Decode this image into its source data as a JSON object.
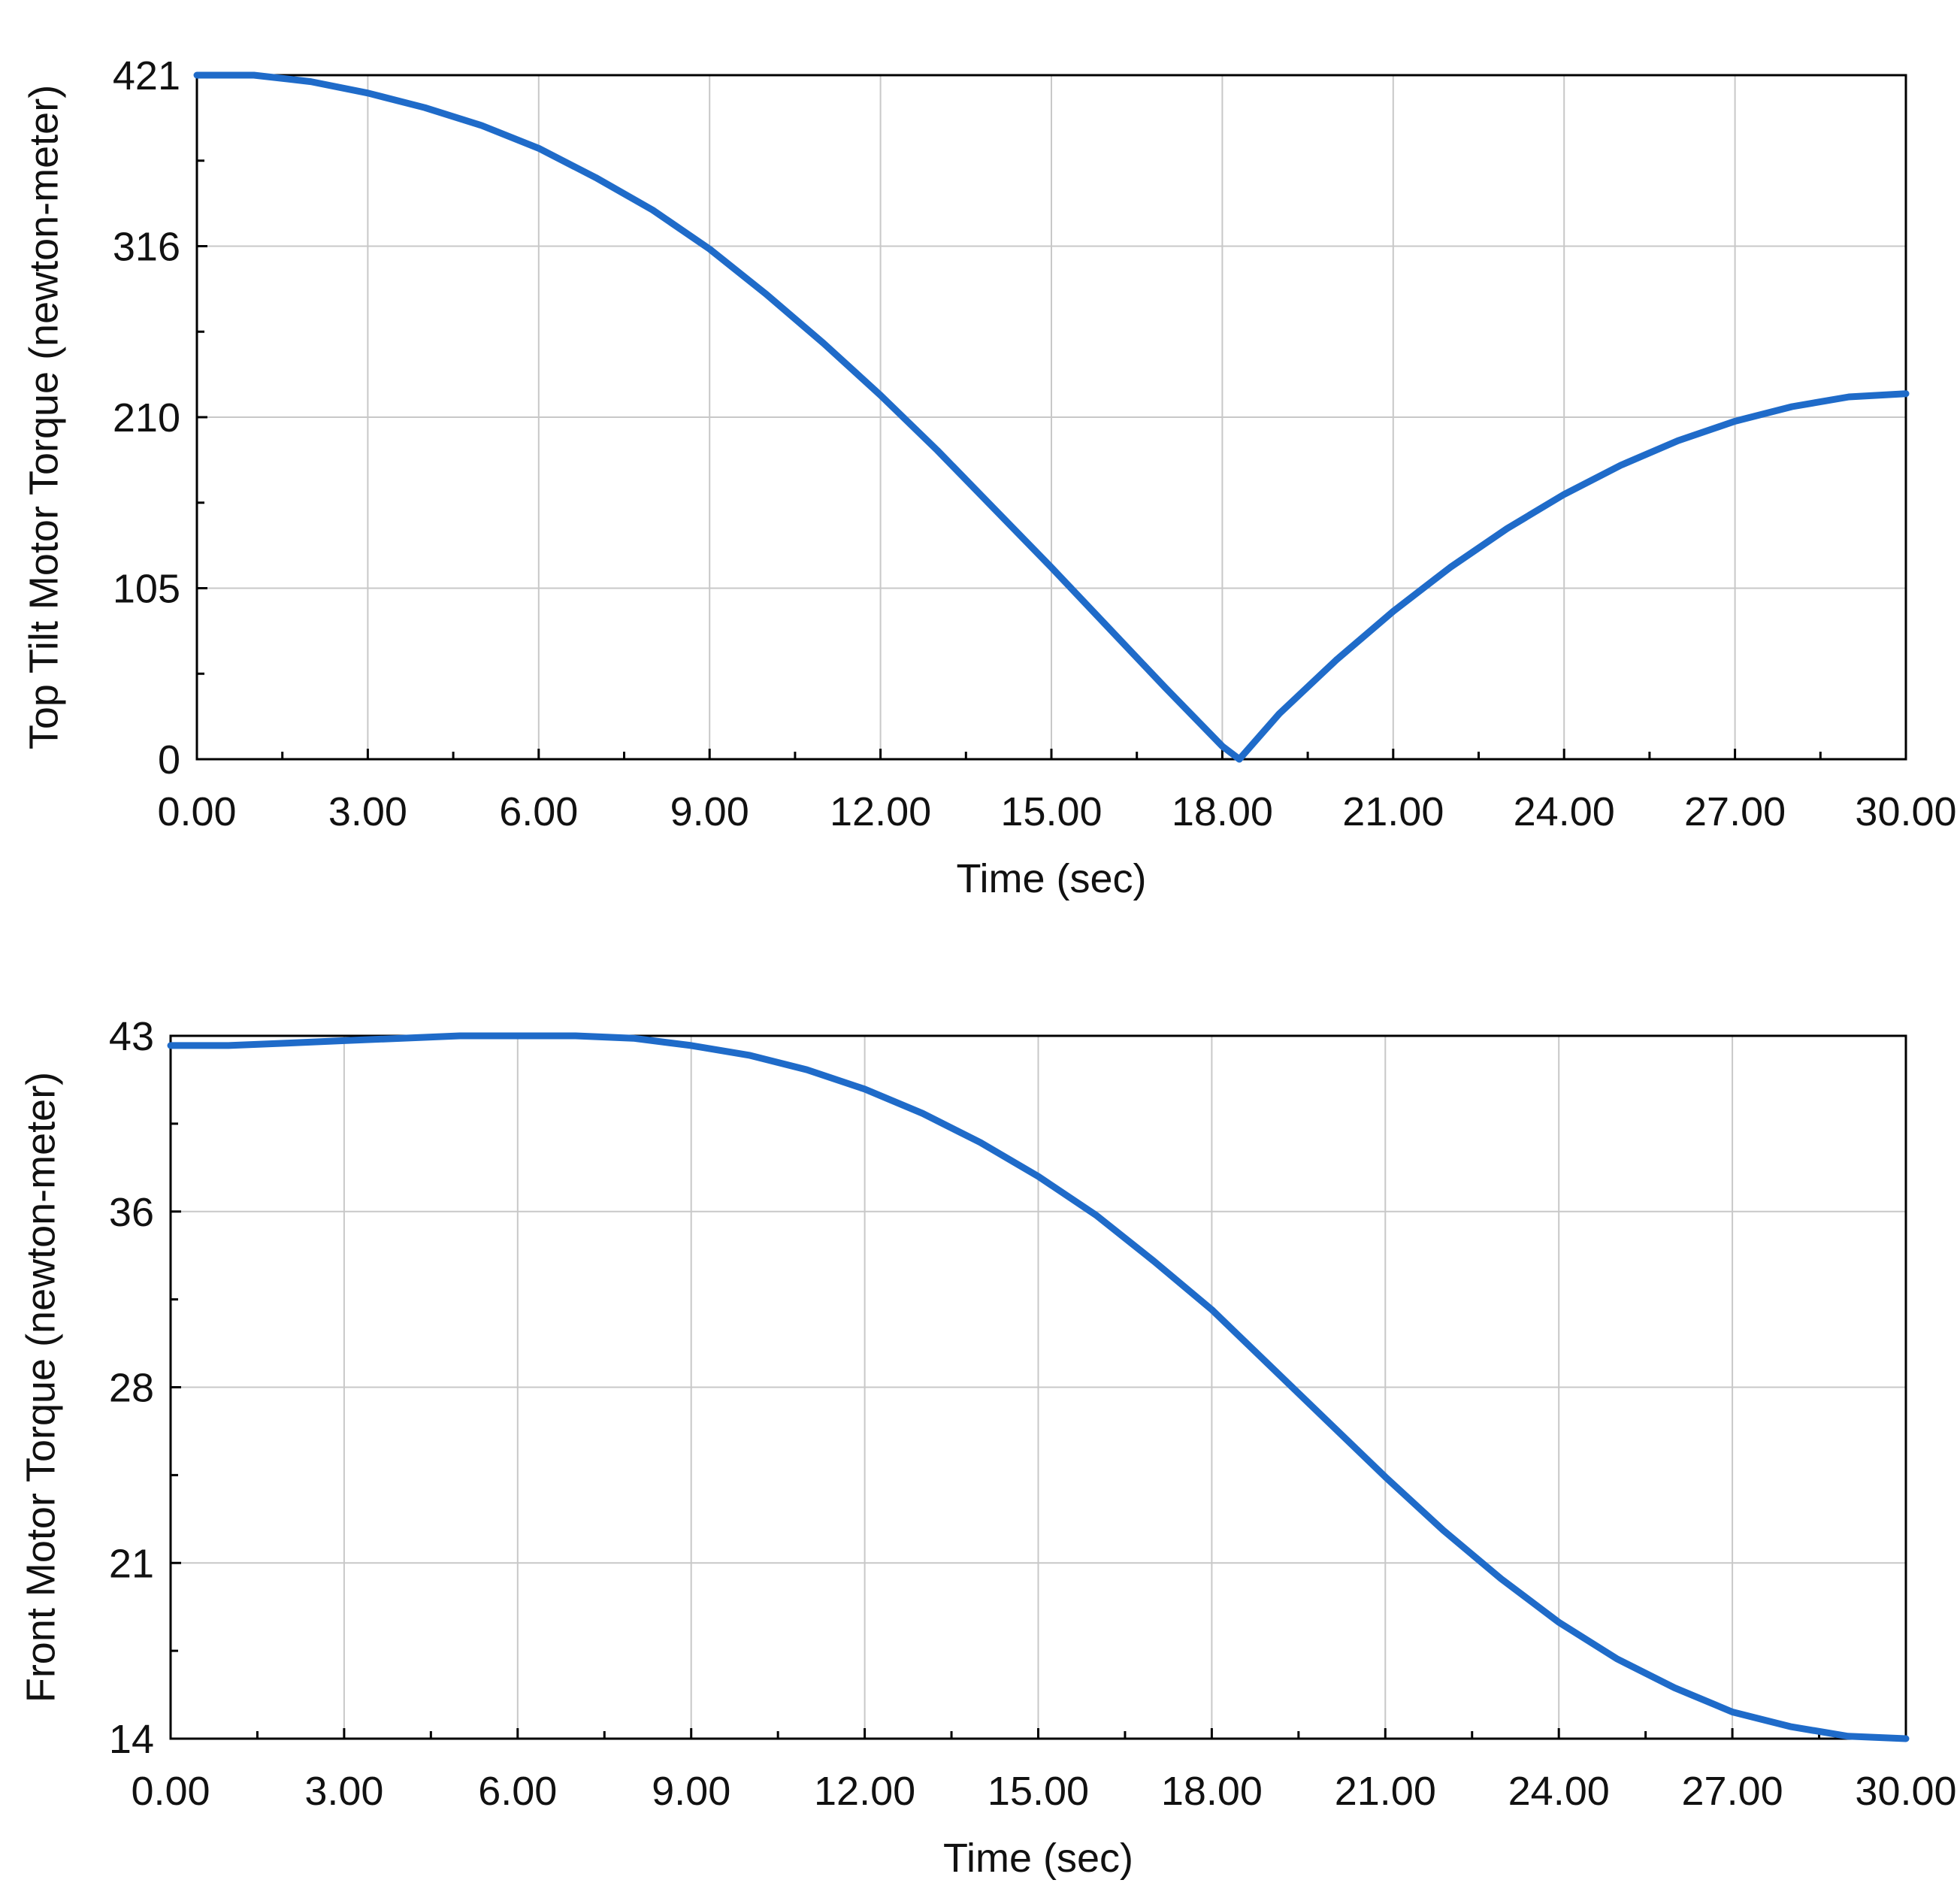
{
  "chart_data": [
    {
      "type": "line",
      "title": "",
      "xlabel": "Time (sec)",
      "ylabel": "Top Tilt Motor Torque (newton-meter)",
      "xlim": [
        0,
        30
      ],
      "ylim": [
        0,
        421
      ],
      "grid": true,
      "x_ticks": [
        "0.00",
        "3.00",
        "6.00",
        "9.00",
        "12.00",
        "15.00",
        "18.00",
        "21.00",
        "24.00",
        "27.00",
        "30.00"
      ],
      "y_ticks": [
        "0",
        "105",
        "210",
        "316",
        "421"
      ],
      "series_color": "#1f6bc9",
      "series": [
        {
          "x": [
            0,
            1,
            2,
            3,
            4,
            5,
            6,
            7,
            8,
            9,
            10,
            11,
            12,
            13,
            14,
            15,
            16,
            17,
            18,
            18.3,
            19,
            20,
            21,
            22,
            23,
            24,
            25,
            26,
            27,
            28,
            29,
            30
          ],
          "values": [
            421,
            421,
            417,
            410,
            401,
            390,
            376,
            358,
            338,
            314,
            286,
            256,
            224,
            190,
            154,
            118,
            81,
            44,
            8,
            0,
            28,
            61,
            91,
            118,
            142,
            163,
            181,
            196,
            208,
            217,
            223,
            225
          ]
        }
      ]
    },
    {
      "type": "line",
      "title": "",
      "xlabel": "Time (sec)",
      "ylabel": "Front Motor Torque (newton-meter)",
      "xlim": [
        0,
        30
      ],
      "ylim": [
        14,
        43
      ],
      "grid": true,
      "x_ticks": [
        "0.00",
        "3.00",
        "6.00",
        "9.00",
        "12.00",
        "15.00",
        "18.00",
        "21.00",
        "24.00",
        "27.00",
        "30.00"
      ],
      "y_ticks": [
        "14",
        "21",
        "28",
        "36",
        "43"
      ],
      "series_color": "#1f6bc9",
      "series": [
        {
          "x": [
            0,
            1,
            2,
            3,
            4,
            5,
            6,
            7,
            8,
            9,
            10,
            11,
            12,
            13,
            14,
            15,
            16,
            17,
            18,
            19,
            20,
            21,
            22,
            23,
            24,
            25,
            26,
            27,
            28,
            29,
            30
          ],
          "values": [
            42.6,
            42.6,
            42.7,
            42.8,
            42.9,
            43,
            43,
            43,
            42.9,
            42.6,
            42.2,
            41.6,
            40.8,
            39.8,
            38.6,
            37.2,
            35.6,
            33.7,
            31.7,
            29.4,
            27.1,
            24.8,
            22.6,
            20.6,
            18.8,
            17.3,
            16.1,
            15.1,
            14.5,
            14.1,
            14
          ]
        }
      ]
    }
  ]
}
